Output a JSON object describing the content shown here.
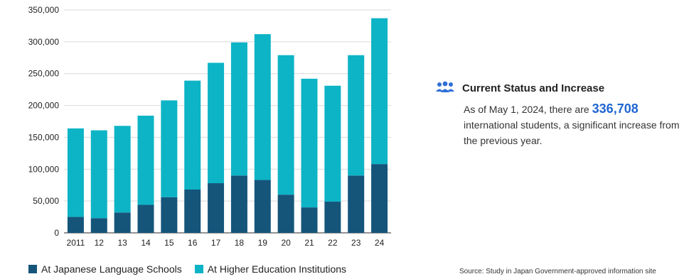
{
  "chart_data": {
    "type": "bar",
    "stacked": true,
    "categories": [
      "2011",
      "12",
      "13",
      "14",
      "15",
      "16",
      "17",
      "18",
      "19",
      "20",
      "21",
      "22",
      "23",
      "24"
    ],
    "series": [
      {
        "name": "At Japanese Language Schools",
        "color": "#15557a",
        "values": [
          25000,
          23000,
          32000,
          44000,
          56000,
          68000,
          78000,
          90000,
          83000,
          60000,
          40000,
          49000,
          90000,
          108000
        ]
      },
      {
        "name": "At Higher Education Institutions",
        "color": "#0db4c6",
        "values": [
          139000,
          138000,
          136000,
          140000,
          152000,
          171000,
          189000,
          209000,
          229000,
          219000,
          202000,
          182000,
          189000,
          229000
        ]
      }
    ],
    "yticks": [
      "0",
      "50,000",
      "100,000",
      "150,000",
      "200,000",
      "250,000",
      "300,000",
      "350,000"
    ],
    "ylim": [
      0,
      350000
    ],
    "grid": true,
    "legend_position": "bottom-left"
  },
  "info": {
    "icon": "people-group-icon",
    "icon_color": "#2f6fd6",
    "title": "Current Status and Increase",
    "text_before": "As of May 1, 2024, there are",
    "highlight": "336,708",
    "text_after": "international students, a significant increase from the previous year."
  },
  "source": "Source: Study in Japan Government-approved information site"
}
